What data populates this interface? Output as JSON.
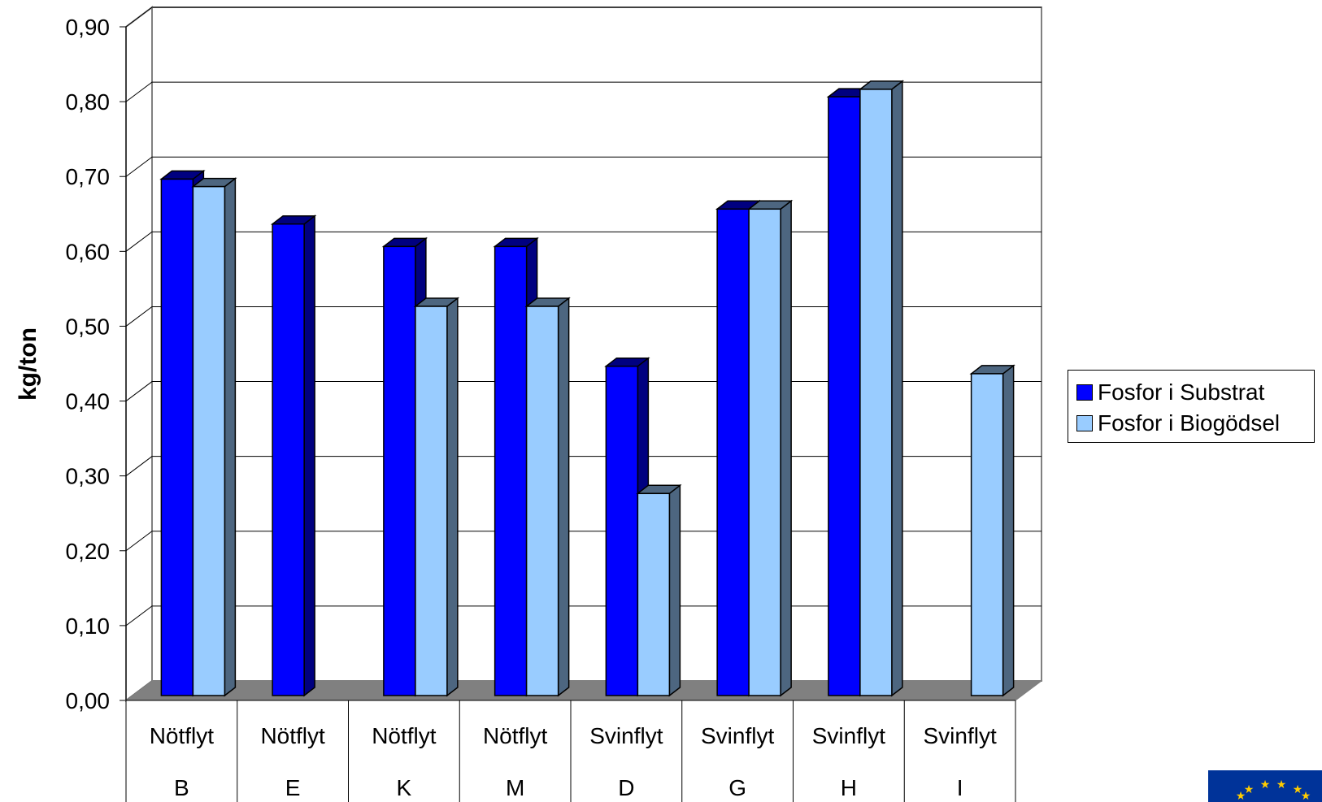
{
  "chart_data": {
    "type": "bar",
    "style": "3d-clustered-column",
    "title": "",
    "xlabel": "",
    "ylabel": "kg/ton",
    "ylim": [
      0,
      0.9
    ],
    "y_ticks": [
      "0,00",
      "0,10",
      "0,20",
      "0,30",
      "0,40",
      "0,50",
      "0,60",
      "0,70",
      "0,80",
      "0,90"
    ],
    "grid": true,
    "legend_position": "right",
    "categories": [
      {
        "top": "Nötflyt",
        "bottom": "B"
      },
      {
        "top": "Nötflyt",
        "bottom": "E"
      },
      {
        "top": "Nötflyt",
        "bottom": "K"
      },
      {
        "top": "Nötflyt",
        "bottom": "M"
      },
      {
        "top": "Svinflyt",
        "bottom": "D"
      },
      {
        "top": "Svinflyt",
        "bottom": "G"
      },
      {
        "top": "Svinflyt",
        "bottom": "H"
      },
      {
        "top": "Svinflyt",
        "bottom": "I"
      }
    ],
    "series": [
      {
        "name": "Fosfor i Substrat",
        "color": "#0000ff",
        "side_color": "#000080",
        "values": [
          0.69,
          0.63,
          0.6,
          0.6,
          0.44,
          0.65,
          0.8,
          null
        ]
      },
      {
        "name": "Fosfor i Biogödsel",
        "color": "#99ccff",
        "side_color": "#4d6680",
        "values": [
          0.68,
          null,
          0.52,
          0.52,
          0.27,
          0.65,
          0.81,
          0.43
        ]
      }
    ]
  },
  "logo": {
    "name": "eu-flag",
    "color": "#003399",
    "star_color": "#ffcc00"
  }
}
